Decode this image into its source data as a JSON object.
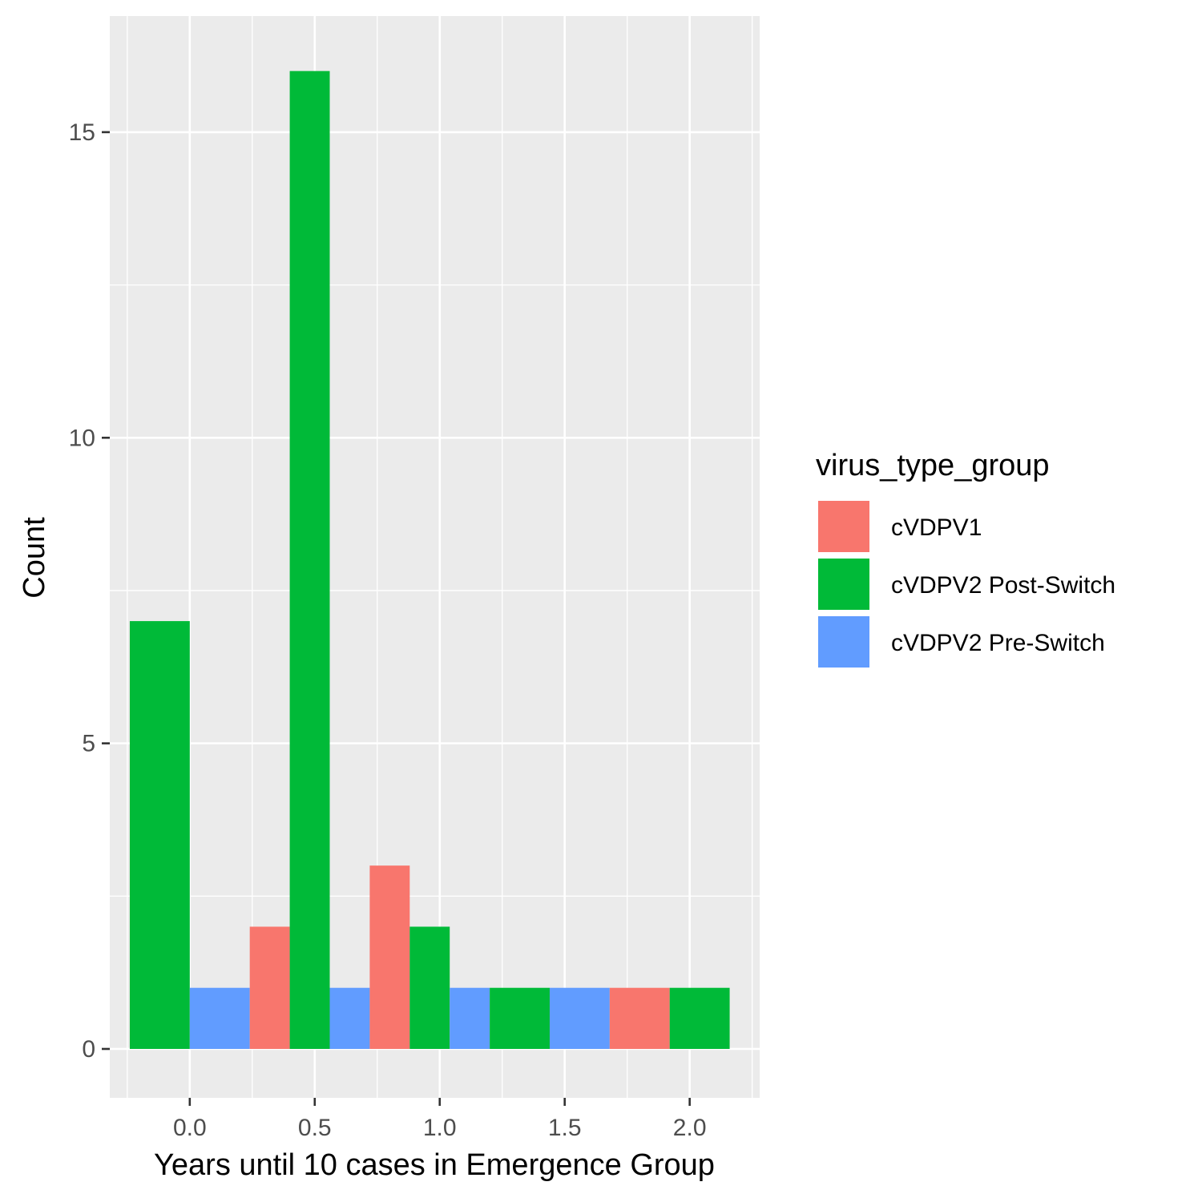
{
  "chart_data": {
    "type": "bar",
    "xlabel": "Years until 10 cases in Emergence Group",
    "ylabel": "Count",
    "xlim": [
      -0.32,
      2.28
    ],
    "ylim": [
      -0.8,
      16.9
    ],
    "x_ticks": [
      0.0,
      0.5,
      1.0,
      1.5,
      2.0
    ],
    "x_tick_labels": [
      "0.0",
      "0.5",
      "1.0",
      "1.5",
      "2.0"
    ],
    "y_ticks": [
      0,
      5,
      10,
      15
    ],
    "y_tick_labels": [
      "0",
      "5",
      "10",
      "15"
    ],
    "grid": true,
    "bin_width": 0.48,
    "bin_centers": [
      0,
      0.48,
      0.96,
      1.44,
      1.92
    ],
    "dodge": "each bin split among its present groups, in legend order",
    "series": [
      {
        "name": "cVDPV1",
        "color": "#F8766D",
        "values": [
          0,
          2,
          3,
          0,
          1
        ]
      },
      {
        "name": "cVDPV2 Post-Switch",
        "color": "#00BA38",
        "values": [
          7,
          16,
          2,
          1,
          1
        ]
      },
      {
        "name": "cVDPV2 Pre-Switch",
        "color": "#619CFF",
        "values": [
          1,
          1,
          1,
          1,
          0
        ]
      }
    ],
    "legend": {
      "title": "virus_type_group",
      "placement": "right"
    }
  },
  "colors": {
    "panel_background": "#EBEBEB",
    "grid_major": "#FFFFFF",
    "grid_minor": "#FFFFFF"
  }
}
